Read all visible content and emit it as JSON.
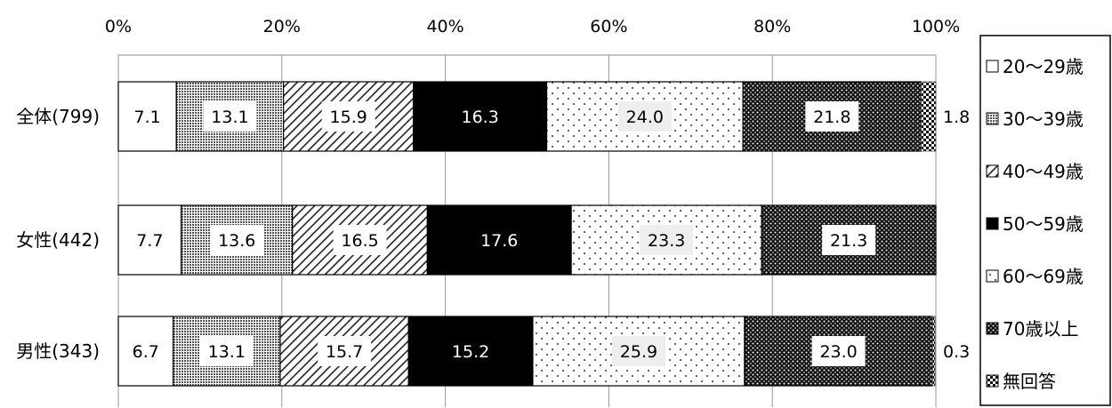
{
  "chart_data": {
    "type": "bar",
    "orientation": "horizontal",
    "stacked": true,
    "xlim": [
      0,
      100
    ],
    "x_ticks": [
      "0%",
      "20%",
      "40%",
      "60%",
      "80%",
      "100%"
    ],
    "categories": [
      "全体(799)",
      "女性(442)",
      "男性(343)"
    ],
    "series": [
      {
        "name": "20～29歳",
        "values": [
          7.1,
          7.7,
          6.7
        ],
        "pattern": "white"
      },
      {
        "name": "30～39歳",
        "values": [
          13.1,
          13.6,
          13.1
        ],
        "pattern": "fine-grid"
      },
      {
        "name": "40～49歳",
        "values": [
          15.9,
          16.5,
          15.7
        ],
        "pattern": "diagonal"
      },
      {
        "name": "50～59歳",
        "values": [
          16.3,
          17.6,
          15.2
        ],
        "pattern": "black"
      },
      {
        "name": "60～69歳",
        "values": [
          24.0,
          23.3,
          25.9
        ],
        "pattern": "sparse-dots"
      },
      {
        "name": "70歳以上",
        "values": [
          21.8,
          21.3,
          23.0
        ],
        "pattern": "dense-dots"
      },
      {
        "name": "無回答",
        "values": [
          1.8,
          0,
          0.3
        ],
        "pattern": "checker"
      }
    ],
    "data_labels": [
      [
        "7.1",
        "13.1",
        "15.9",
        "16.3",
        "24.0",
        "21.8",
        "1.8"
      ],
      [
        "7.7",
        "13.6",
        "16.5",
        "17.6",
        "23.3",
        "21.3",
        ""
      ],
      [
        "6.7",
        "13.1",
        "15.7",
        "15.2",
        "25.9",
        "23.0",
        "0.3"
      ]
    ],
    "grid": true,
    "legend_position": "right"
  }
}
